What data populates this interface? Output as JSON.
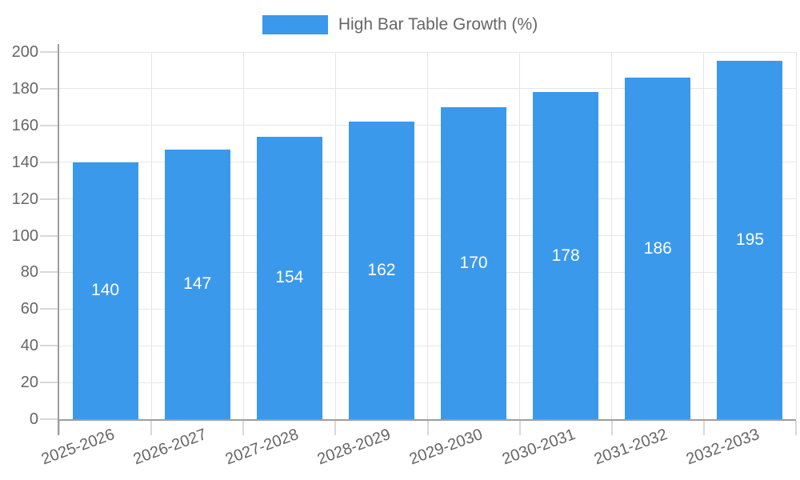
{
  "chart_data": {
    "type": "bar",
    "title": "High Bar Table Growth (%)",
    "legend": {
      "label": "High Bar Table Growth (%)",
      "position": "top"
    },
    "categories": [
      "2025-2026",
      "2026-2027",
      "2027-2028",
      "2028-2029",
      "2029-2030",
      "2030-2031",
      "2031-2032",
      "2032-2033"
    ],
    "series": [
      {
        "name": "High Bar Table Growth (%)",
        "values": [
          140,
          147,
          154,
          162,
          170,
          178,
          186,
          195
        ]
      }
    ],
    "value_labels": [
      "140",
      "147",
      "154",
      "162",
      "170",
      "178",
      "186",
      "195"
    ],
    "xlabel": "",
    "ylabel": "",
    "ylim": [
      0,
      200
    ],
    "yticks": [
      0,
      20,
      40,
      60,
      80,
      100,
      120,
      140,
      160,
      180,
      200
    ],
    "grid": true,
    "legend_position": "top",
    "colors": {
      "bar": "#3B99EC",
      "value_label": "#FFFFFF",
      "axis_text": "#666666",
      "gridline": "#E6E6E6",
      "tick": "#D8D8D8",
      "axis_border": "#9E9E9E",
      "background": "#FFFFFF"
    }
  }
}
